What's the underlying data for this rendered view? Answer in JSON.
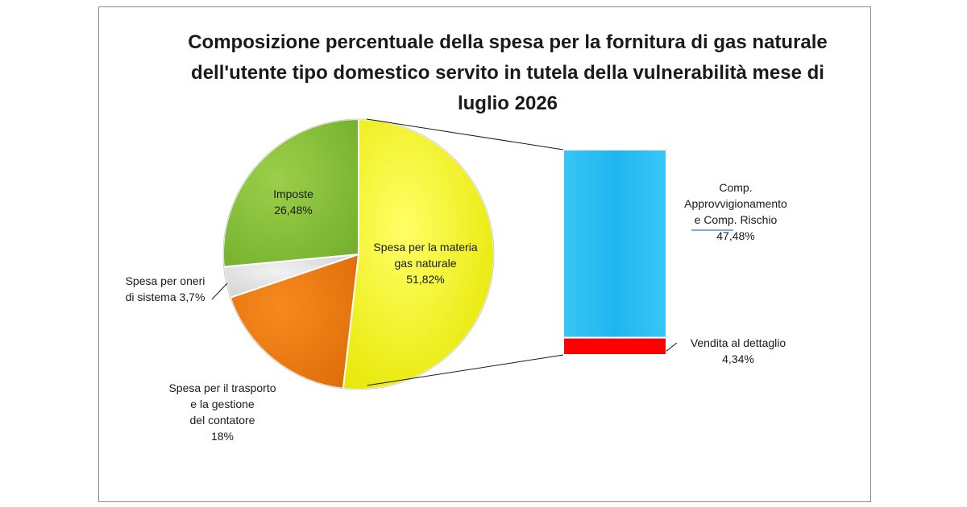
{
  "chart_data": {
    "type": "pie",
    "title": "Composizione  percentuale della spesa per la fornitura di gas naturale dell'utente tipo domestico servito in tutela della vulnerabilità mese di luglio 2026",
    "slices": [
      {
        "label": [
          "Spesa per la materia",
          "gas naturale"
        ],
        "value": 51.82,
        "value_label": "51,82%",
        "color": "#ffff00"
      },
      {
        "label": [
          "Spesa per il trasporto",
          "e la gestione",
          "del contatore"
        ],
        "value": 18,
        "value_label": "18%",
        "color": "#f07d12"
      },
      {
        "label": [
          "Spesa per oneri",
          "di sistema 3,7%"
        ],
        "value": 3.7,
        "value_label": "",
        "color": "#e6e6e6"
      },
      {
        "label": [
          "Imposte"
        ],
        "value": 26.48,
        "value_label": "26,48%",
        "color": "#8cc63f"
      }
    ],
    "breakdown": {
      "of_slice": "Spesa per la materia gas naturale",
      "type": "stacked-bar",
      "segments": [
        {
          "label": [
            "Comp.",
            "Approvvigionamento",
            "e  Comp. Rischio"
          ],
          "value": 47.48,
          "value_label": "47,48%",
          "color": "#22b8f0"
        },
        {
          "label": [
            "Vendita al dettaglio"
          ],
          "value": 4.34,
          "value_label": "4,34%",
          "color": "#ff0000"
        }
      ]
    }
  }
}
